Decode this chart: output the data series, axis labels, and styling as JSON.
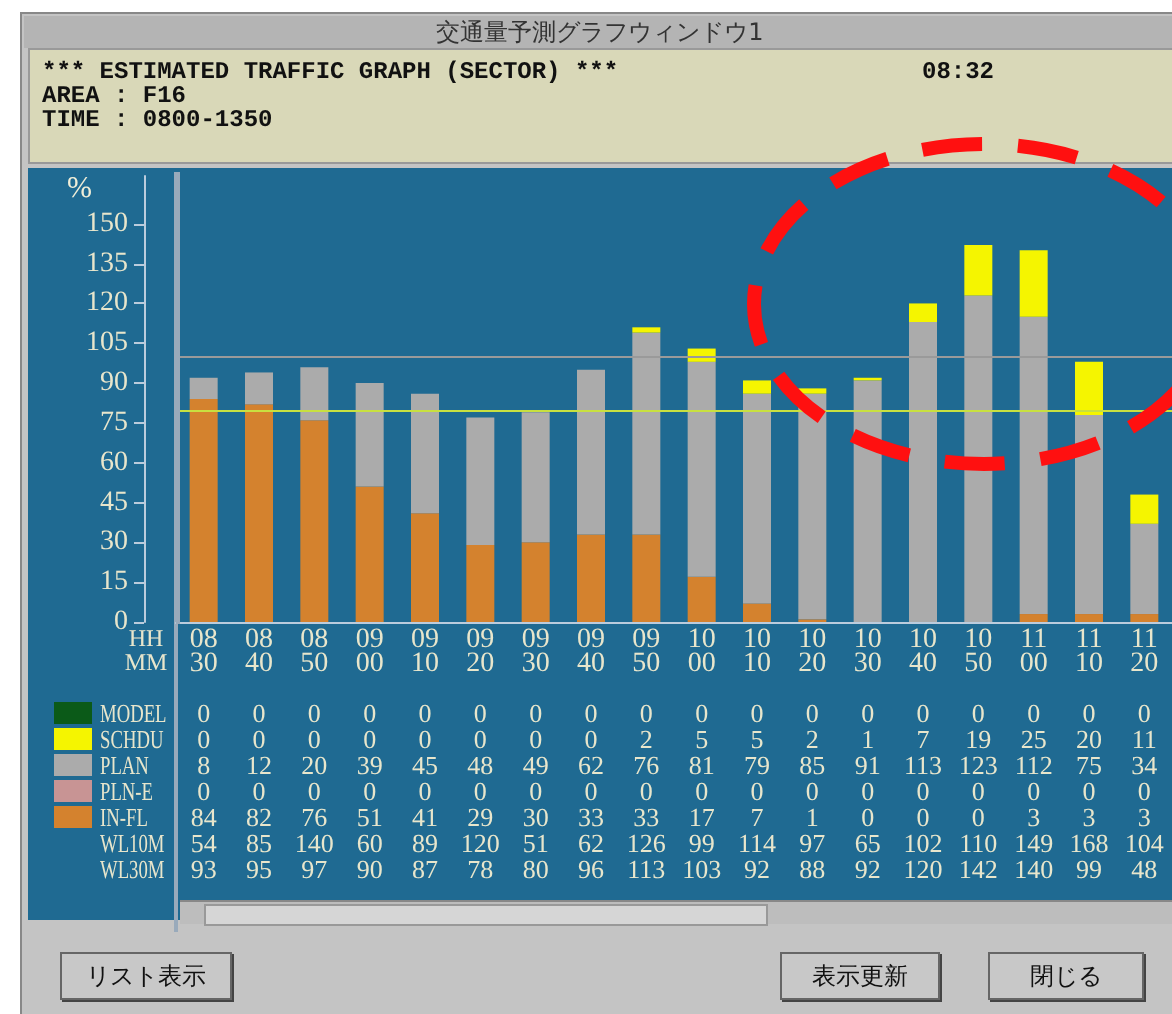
{
  "chart_data": {
    "type": "bar",
    "title": "交通量予測グラフウィンドウ1",
    "subtitle": "*** ESTIMATED TRAFFIC GRAPH (SECTOR) ***",
    "ylabel": "%",
    "categories": [
      "08\n30",
      "08\n40",
      "08\n50",
      "09\n00",
      "09\n10",
      "09\n20",
      "09\n30",
      "09\n40",
      "09\n50",
      "10\n00",
      "10\n10",
      "10\n20",
      "10\n30",
      "10\n40",
      "10\n50",
      "11\n00",
      "11\n10",
      "11\n20"
    ],
    "series": [
      {
        "name": "IN-FL",
        "color": "#d4822e",
        "values": [
          84,
          82,
          76,
          51,
          41,
          29,
          30,
          33,
          33,
          17,
          7,
          1,
          0,
          0,
          0,
          3,
          3,
          3
        ],
        "value_labels": [
          "84",
          "82",
          "76",
          "51",
          "41",
          "29",
          "30",
          "33",
          "33",
          "17",
          "7",
          "1",
          "0",
          "0",
          "0",
          "3",
          "3",
          "3"
        ]
      },
      {
        "name": "PLN-E",
        "color": "#c89494",
        "values": [
          0,
          0,
          0,
          0,
          0,
          0,
          0,
          0,
          0,
          0,
          0,
          0,
          0,
          0,
          0,
          0,
          0,
          0
        ],
        "value_labels": [
          "0",
          "0",
          "0",
          "0",
          "0",
          "0",
          "0",
          "0",
          "0",
          "0",
          "0",
          "0",
          "0",
          "0",
          "0",
          "0",
          "0",
          "0"
        ]
      },
      {
        "name": "PLAN",
        "color": "#ababab",
        "values": [
          8,
          12,
          20,
          39,
          45,
          48,
          49,
          62,
          76,
          81,
          79,
          85,
          91,
          113,
          123,
          112,
          75,
          34
        ],
        "value_labels": [
          "8",
          "12",
          "20",
          "39",
          "45",
          "48",
          "49",
          "62",
          "76",
          "81",
          "79",
          "85",
          "91",
          "113",
          "123",
          "112",
          "75",
          "34"
        ]
      },
      {
        "name": "SCHDU",
        "color": "#f5f500",
        "values": [
          0,
          0,
          0,
          0,
          0,
          0,
          0,
          0,
          2,
          5,
          5,
          2,
          1,
          7,
          19,
          25,
          20,
          11
        ],
        "value_labels": [
          "0",
          "0",
          "0",
          "0",
          "0",
          "0",
          "0",
          "0",
          "2",
          "5",
          "5",
          "2",
          "1",
          "7",
          "19",
          "25",
          "20",
          "11"
        ]
      },
      {
        "name": "MODEL",
        "color": "#0b5a18",
        "values": [
          0,
          0,
          0,
          0,
          0,
          0,
          0,
          0,
          0,
          0,
          0,
          0,
          0,
          0,
          0,
          0,
          0,
          0
        ],
        "value_labels": [
          "0",
          "0",
          "0",
          "0",
          "0",
          "0",
          "0",
          "0",
          "0",
          "0",
          "0",
          "0",
          "0",
          "0",
          "0",
          "0",
          "0",
          "0"
        ]
      }
    ],
    "stacked": true,
    "ylim": [
      0,
      168
    ],
    "yticks": [
      0,
      15,
      30,
      45,
      60,
      75,
      90,
      105,
      120,
      135,
      150
    ],
    "grid": false,
    "legend": "left",
    "ref_lines": [
      {
        "axis": "y",
        "value": 100,
        "color": "#9a9a9a"
      },
      {
        "axis": "y",
        "value": 80,
        "color": "#c8e040"
      }
    ],
    "annotations": [
      "08:32",
      "AREA : F16",
      "TIME : 0800-1350",
      "HH",
      "MM",
      "リスト表示",
      "表示更新",
      "閉じる",
      "WL10M",
      "54",
      "85",
      "140",
      "60",
      "89",
      "120",
      "51",
      "62",
      "126",
      "99",
      "114",
      "97",
      "65",
      "102",
      "110",
      "149",
      "168",
      "104",
      "WL30M",
      "93",
      "95",
      "97",
      "90",
      "87",
      "78",
      "80",
      "96",
      "113",
      "103",
      "92",
      "88",
      "92",
      "120",
      "142",
      "140",
      "99",
      "48"
    ]
  }
}
